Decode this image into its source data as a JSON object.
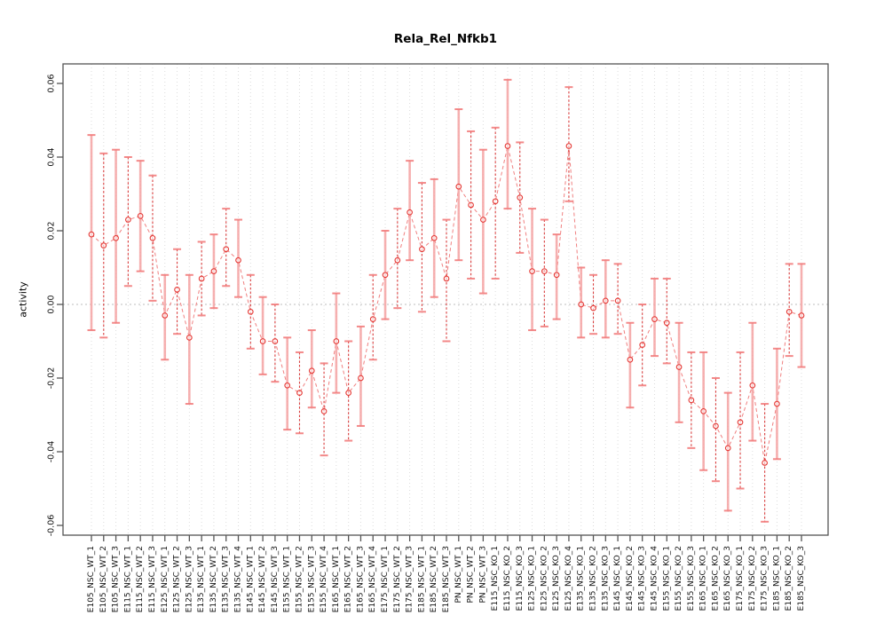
{
  "title": "Rela_Rel_Nfkb1",
  "ylabel": "activity",
  "chart_data": {
    "type": "scatter",
    "title": "Rela_Rel_Nfkb1",
    "xlabel": "",
    "ylabel": "activity",
    "ylim": [
      -0.065,
      0.065
    ],
    "yticks": [
      0.06,
      0.04,
      0.02,
      0,
      -0.02,
      -0.04,
      -0.06
    ],
    "grid": {
      "vertical_per_category": true,
      "horizontal_zero_line": true
    },
    "legend": "none",
    "marker": "open-circle",
    "error_bars": true,
    "colors": {
      "point": "#e53935",
      "connector": "#f08080",
      "error_bar_pale": "#f5a3a3",
      "error_bar_dark": "#d93535",
      "cap": "#f27d7d",
      "gridline": "#dcdcdc",
      "zero_line": "#bdbdbd",
      "frame": "#555555"
    },
    "categories": [
      "E105_NSC_WT_1",
      "E105_NSC_WT_2",
      "E105_NSC_WT_3",
      "E115_NSC_WT_1",
      "E115_NSC_WT_2",
      "E115_NSC_WT_3",
      "E125_NSC_WT_1",
      "E125_NSC_WT_2",
      "E125_NSC_WT_3",
      "E135_NSC_WT_1",
      "E135_NSC_WT_2",
      "E135_NSC_WT_3",
      "E135_NSC_WT_4",
      "E145_NSC_WT_1",
      "E145_NSC_WT_2",
      "E145_NSC_WT_3",
      "E155_NSC_WT_1",
      "E155_NSC_WT_2",
      "E155_NSC_WT_3",
      "E155_NSC_WT_4",
      "E165_NSC_WT_1",
      "E165_NSC_WT_2",
      "E165_NSC_WT_3",
      "E165_NSC_WT_4",
      "E175_NSC_WT_1",
      "E175_NSC_WT_2",
      "E175_NSC_WT_3",
      "E185_NSC_WT_1",
      "E185_NSC_WT_2",
      "E185_NSC_WT_3",
      "PN_NSC_WT_1",
      "PN_NSC_WT_2",
      "PN_NSC_WT_3",
      "E115_NSC_KO_1",
      "E115_NSC_KO_2",
      "E115_NSC_KO_3",
      "E125_NSC_KO_1",
      "E125_NSC_KO_2",
      "E125_NSC_KO_3",
      "E125_NSC_KO_4",
      "E135_NSC_KO_1",
      "E135_NSC_KO_2",
      "E135_NSC_KO_3",
      "E145_NSC_KO_1",
      "E145_NSC_KO_2",
      "E145_NSC_KO_3",
      "E145_NSC_KO_4",
      "E155_NSC_KO_1",
      "E155_NSC_KO_2",
      "E155_NSC_KO_3",
      "E165_NSC_KO_1",
      "E165_NSC_KO_2",
      "E165_NSC_KO_3",
      "E175_NSC_KO_1",
      "E175_NSC_KO_2",
      "E175_NSC_KO_3",
      "E185_NSC_KO_1",
      "E185_NSC_KO_2",
      "E185_NSC_KO_3"
    ],
    "series": [
      {
        "name": "activity",
        "values": [
          0.019,
          0.016,
          0.018,
          0.023,
          0.024,
          0.018,
          -0.003,
          0.004,
          -0.009,
          0.007,
          0.009,
          0.015,
          0.012,
          -0.002,
          -0.01,
          -0.01,
          -0.022,
          -0.024,
          -0.018,
          -0.029,
          -0.01,
          -0.024,
          -0.02,
          -0.004,
          0.008,
          0.012,
          0.025,
          0.015,
          0.018,
          0.007,
          0.032,
          0.027,
          0.023,
          0.028,
          0.043,
          0.029,
          0.009,
          0.009,
          0.008,
          0.043,
          0.0,
          -0.001,
          0.001,
          0.001,
          -0.015,
          -0.011,
          -0.004,
          -0.005,
          -0.017,
          -0.026,
          -0.029,
          -0.033,
          -0.039,
          -0.032,
          -0.022,
          -0.043,
          -0.027,
          -0.002,
          -0.003
        ]
      },
      {
        "name": "upper_error",
        "values": [
          0.046,
          0.041,
          0.042,
          0.04,
          0.039,
          0.035,
          0.008,
          0.015,
          0.008,
          0.017,
          0.019,
          0.026,
          0.023,
          0.008,
          0.002,
          0.0,
          -0.009,
          -0.013,
          -0.007,
          -0.016,
          0.003,
          -0.01,
          -0.006,
          0.008,
          0.02,
          0.026,
          0.039,
          0.033,
          0.034,
          0.023,
          0.053,
          0.047,
          0.042,
          0.048,
          0.061,
          0.044,
          0.026,
          0.023,
          0.019,
          0.059,
          0.01,
          0.008,
          0.012,
          0.011,
          -0.005,
          0.0,
          0.007,
          0.007,
          -0.005,
          -0.013,
          -0.013,
          -0.02,
          -0.024,
          -0.013,
          -0.005,
          -0.027,
          -0.012,
          0.011,
          0.011
        ]
      },
      {
        "name": "lower_error",
        "values": [
          -0.007,
          -0.009,
          -0.005,
          0.005,
          0.009,
          0.001,
          -0.015,
          -0.008,
          -0.027,
          -0.003,
          -0.001,
          0.005,
          0.002,
          -0.012,
          -0.019,
          -0.021,
          -0.034,
          -0.035,
          -0.028,
          -0.041,
          -0.024,
          -0.037,
          -0.033,
          -0.015,
          -0.004,
          -0.001,
          0.012,
          -0.002,
          0.002,
          -0.01,
          0.012,
          0.007,
          0.003,
          0.007,
          0.026,
          0.014,
          -0.007,
          -0.006,
          -0.004,
          0.028,
          -0.009,
          -0.008,
          -0.009,
          -0.008,
          -0.028,
          -0.022,
          -0.014,
          -0.016,
          -0.032,
          -0.039,
          -0.045,
          -0.048,
          -0.056,
          -0.05,
          -0.037,
          -0.059,
          -0.042,
          -0.014,
          -0.017
        ]
      }
    ]
  }
}
